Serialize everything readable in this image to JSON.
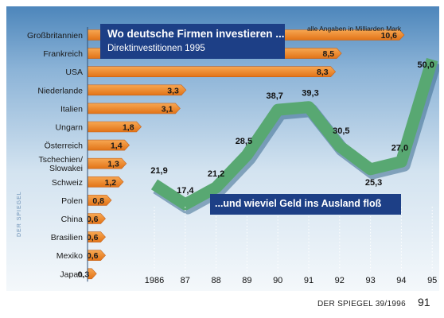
{
  "title": "Wo deutsche Firmen investieren ...",
  "subtitle": "Direktinvestitionen 1995",
  "units_note": "alle Angaben in Milliarden Mark",
  "flow_label": "...und wieviel Geld ins Ausland floß",
  "watermark": "DER SPIEGEL",
  "footer": {
    "source": "DER SPIEGEL 39/1996",
    "page": "91"
  },
  "colors": {
    "bar": "#f08a2c",
    "bar_dark": "#c4621c",
    "line": "#58a872",
    "line_shadow": "#3d6b8f",
    "title_box": "#1d3f86",
    "background_top": "#4d86bb",
    "background_bottom": "#f4f8fb"
  },
  "chart_data": [
    {
      "type": "bar",
      "orientation": "horizontal",
      "title": "Wo deutsche Firmen investieren ...",
      "subtitle": "Direktinvestitionen 1995",
      "units": "alle Angaben in Milliarden Mark",
      "categories": [
        "Großbritannien",
        "Frankreich",
        "USA",
        "Niederlande",
        "Italien",
        "Ungarn",
        "Österreich",
        "Tschechien/\nSlowakei",
        "Schweiz",
        "Polen",
        "China",
        "Brasilien",
        "Mexiko",
        "Japan"
      ],
      "values": [
        10.6,
        8.5,
        8.3,
        3.3,
        3.1,
        1.8,
        1.4,
        1.3,
        1.2,
        0.8,
        0.6,
        0.6,
        0.6,
        0.3
      ],
      "value_labels": [
        "10,6",
        "8,5",
        "8,3",
        "3,3",
        "3,1",
        "1,8",
        "1,4",
        "1,3",
        "1,2",
        "0,8",
        "0,6",
        "0,6",
        "0,6",
        "0,3"
      ],
      "xlim": [
        0,
        10.6
      ]
    },
    {
      "type": "line",
      "title": "...und wieviel Geld ins Ausland floß",
      "categories": [
        "1986",
        "87",
        "88",
        "89",
        "90",
        "91",
        "92",
        "93",
        "94",
        "95"
      ],
      "values": [
        21.9,
        17.4,
        21.2,
        28.5,
        38.7,
        39.3,
        30.5,
        25.3,
        27.0,
        50.0
      ],
      "value_labels": [
        "21,9",
        "17,4",
        "21,2",
        "28,5",
        "38,7",
        "39,3",
        "30,5",
        "25,3",
        "27,0",
        "50,0"
      ],
      "ylim": [
        17.4,
        50.0
      ]
    }
  ]
}
